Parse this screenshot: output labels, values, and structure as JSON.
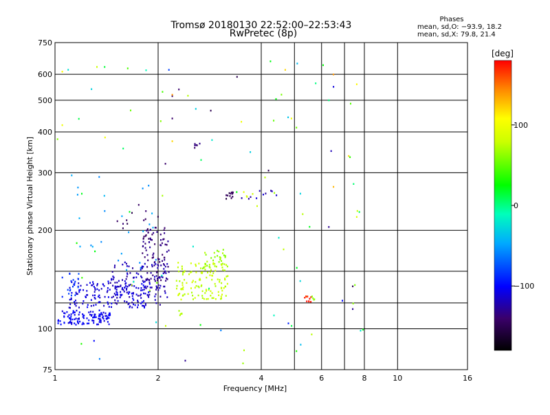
{
  "chart_data": {
    "type": "scatter",
    "title": "Tromsø 20180130 22:52:00–22:53:43",
    "subtitle": "RwPretec (8p)",
    "xlabel": "Frequency [MHz]",
    "ylabel": "Stationary phase Virtual Height [km]",
    "x_scale": "log2",
    "y_scale": "log",
    "xlim": [
      1,
      16
    ],
    "ylim": [
      75,
      750
    ],
    "x_ticks": [
      1,
      2,
      4,
      6,
      8,
      10,
      16
    ],
    "x_tick_labels": [
      "1",
      "2",
      "4",
      "6",
      "8",
      "10",
      "16"
    ],
    "x_extra_gridlines": [
      5,
      7
    ],
    "y_ticks": [
      75,
      100,
      200,
      300,
      400,
      500,
      600,
      750
    ],
    "y_tick_labels": [
      "75",
      "100",
      "200",
      "300",
      "400",
      "500",
      "600",
      "750"
    ],
    "y_extra_gridlines": [
      120,
      150
    ],
    "grid": true,
    "stats": {
      "heading": "Phases",
      "o_line": "mean, sd,O: −93.9, 18.2",
      "x_line": "mean, sd,X:  79.8, 21.4"
    },
    "colorbar": {
      "label": "[deg]",
      "min": -180,
      "max": 180,
      "ticks": [
        -100,
        0,
        100
      ],
      "tick_labels": [
        "−100",
        "0",
        "100"
      ],
      "colormap": "rainbow"
    },
    "clusters": [
      {
        "x": [
          1.02,
          1.45
        ],
        "y": [
          103,
          114
        ],
        "phase": -105,
        "n": 120
      },
      {
        "x": [
          1.1,
          1.9
        ],
        "y": [
          116,
          140
        ],
        "phase": -110,
        "n": 150
      },
      {
        "x": [
          1.45,
          2.15
        ],
        "y": [
          118,
          160
        ],
        "phase": -120,
        "n": 120
      },
      {
        "x": [
          1.8,
          2.15
        ],
        "y": [
          140,
          205
        ],
        "phase": -135,
        "n": 90
      },
      {
        "x": [
          1.05,
          1.2
        ],
        "y": [
          125,
          150
        ],
        "phase": -85,
        "n": 20
      },
      {
        "x": [
          2.25,
          3.2
        ],
        "y": [
          123,
          160
        ],
        "phase": 78,
        "n": 130
      },
      {
        "x": [
          2.7,
          3.2
        ],
        "y": [
          150,
          175
        ],
        "phase": 65,
        "n": 30
      },
      {
        "x": [
          1.1,
          2.1
        ],
        "y": [
          150,
          300
        ],
        "phase": -50,
        "n": 25
      },
      {
        "x": [
          1.5,
          2.0
        ],
        "y": [
          200,
          240
        ],
        "phase": -145,
        "n": 12
      },
      {
        "x": [
          3.15,
          3.35
        ],
        "y": [
          250,
          262
        ],
        "phase": -150,
        "n": 12
      },
      {
        "x": [
          3.5,
          4.6
        ],
        "y": [
          250,
          265
        ],
        "phase": -120,
        "n": 10
      },
      {
        "x": [
          3.5,
          3.9
        ],
        "y": [
          252,
          264
        ],
        "phase": 85,
        "n": 4
      },
      {
        "x": [
          2.55,
          2.65
        ],
        "y": [
          355,
          370
        ],
        "phase": -140,
        "n": 6
      },
      {
        "x": [
          5.35,
          5.6
        ],
        "y": [
          121,
          126
        ],
        "phase": 170,
        "n": 10
      },
      {
        "x": [
          5.6,
          5.75
        ],
        "y": [
          122,
          126
        ],
        "phase": 60,
        "n": 4
      },
      {
        "x": [
          2.3,
          2.35
        ],
        "y": [
          110,
          114
        ],
        "phase": 75,
        "n": 5
      },
      {
        "x": [
          1.0,
          8.0
        ],
        "y": [
          78,
          680
        ],
        "phase": 20,
        "n": 70
      }
    ],
    "points": [
      {
        "x": 2.2,
        "y": 515,
        "phase": -140
      },
      {
        "x": 2.2,
        "y": 520,
        "phase": 140
      },
      {
        "x": 2.3,
        "y": 540,
        "phase": -140
      },
      {
        "x": 2.85,
        "y": 465,
        "phase": -150
      },
      {
        "x": 2.2,
        "y": 440,
        "phase": -140
      },
      {
        "x": 2.1,
        "y": 320,
        "phase": -140
      },
      {
        "x": 2.15,
        "y": 620,
        "phase": -80
      },
      {
        "x": 3.4,
        "y": 590,
        "phase": -150
      },
      {
        "x": 6.5,
        "y": 550,
        "phase": -110
      },
      {
        "x": 6.4,
        "y": 350,
        "phase": -120
      },
      {
        "x": 4.2,
        "y": 305,
        "phase": -150
      },
      {
        "x": 6.3,
        "y": 205,
        "phase": -130
      },
      {
        "x": 4.5,
        "y": 190,
        "phase": -20
      },
      {
        "x": 7.4,
        "y": 135,
        "phase": -150
      },
      {
        "x": 7.4,
        "y": 115,
        "phase": -130
      },
      {
        "x": 6.9,
        "y": 122,
        "phase": -100
      },
      {
        "x": 4.8,
        "y": 104,
        "phase": -90
      },
      {
        "x": 2.4,
        "y": 80,
        "phase": -130
      },
      {
        "x": 1.35,
        "y": 81,
        "phase": -60
      },
      {
        "x": 1.3,
        "y": 92,
        "phase": -100
      },
      {
        "x": 3.05,
        "y": 99,
        "phase": -60
      },
      {
        "x": 4.7,
        "y": 620,
        "phase": 120
      },
      {
        "x": 6.5,
        "y": 600,
        "phase": 140
      },
      {
        "x": 7.6,
        "y": 560,
        "phase": 110
      },
      {
        "x": 4.9,
        "y": 440,
        "phase": 100
      },
      {
        "x": 7.2,
        "y": 338,
        "phase": 120
      },
      {
        "x": 6.5,
        "y": 272,
        "phase": 130
      },
      {
        "x": 7.6,
        "y": 220,
        "phase": 90
      },
      {
        "x": 3.5,
        "y": 430,
        "phase": 100
      },
      {
        "x": 2.2,
        "y": 375,
        "phase": 120
      },
      {
        "x": 1.05,
        "y": 612,
        "phase": 105
      },
      {
        "x": 1.05,
        "y": 420,
        "phase": 100
      },
      {
        "x": 1.4,
        "y": 385,
        "phase": 100
      }
    ]
  }
}
